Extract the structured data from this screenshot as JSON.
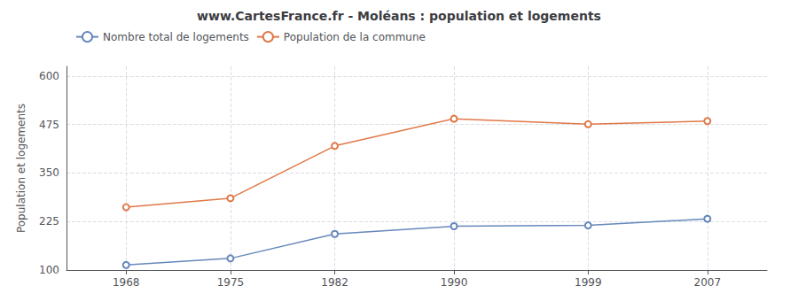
{
  "chart_data": {
    "type": "line",
    "title": "www.CartesFrance.fr - Moléans : population et logements",
    "ylabel": "Population et logements",
    "x": [
      1968,
      1975,
      1982,
      1990,
      1999,
      2007
    ],
    "series": [
      {
        "name": "Nombre total de logements",
        "color": "#6688bb",
        "values": [
          113,
          130,
          193,
          213,
          215,
          232
        ],
        "marker": "circle"
      },
      {
        "name": "Population de la commune",
        "color": "#e07848",
        "values": [
          262,
          285,
          420,
          490,
          476,
          484
        ],
        "marker": "circle"
      }
    ],
    "xlim": [
      1964,
      2011
    ],
    "xticks": [
      1968,
      1975,
      1982,
      1990,
      1999,
      2007
    ],
    "ylim": [
      100,
      625
    ],
    "yticks": [
      100,
      225,
      350,
      475,
      600
    ],
    "grid": true,
    "legend": "top-left"
  }
}
